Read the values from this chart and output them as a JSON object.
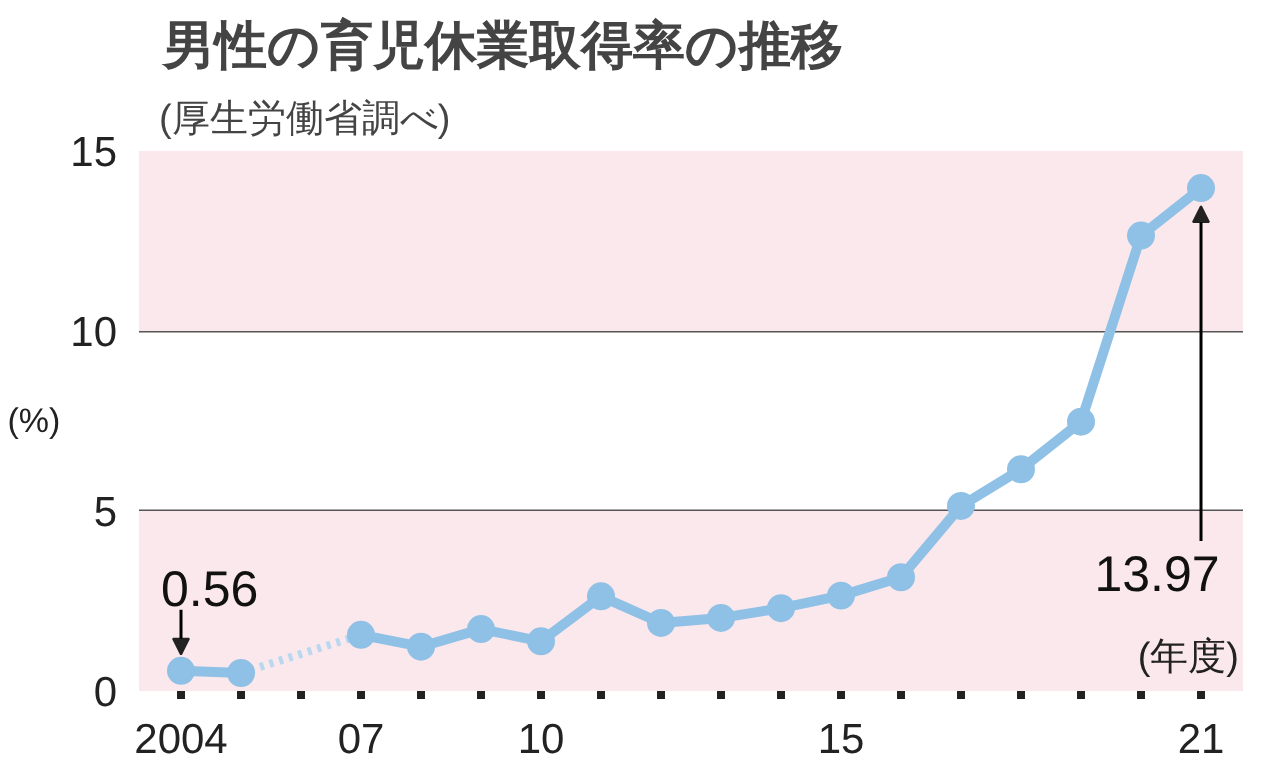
{
  "chart_data": {
    "type": "line",
    "title": "男性の育児休業取得率の推移",
    "subtitle": "(厚生労働省調べ)",
    "ylabel": "(%)",
    "xlabel": "(年度)",
    "x": [
      2004,
      2005,
      2006,
      2007,
      2008,
      2009,
      2010,
      2011,
      2012,
      2013,
      2014,
      2015,
      2016,
      2017,
      2018,
      2019,
      2020,
      2021
    ],
    "series": [
      {
        "color": "#8fc0e6",
        "values": [
          0.56,
          0.5,
          null,
          1.56,
          1.23,
          1.72,
          1.38,
          2.63,
          1.89,
          2.03,
          2.3,
          2.65,
          3.16,
          5.14,
          6.16,
          7.48,
          12.65,
          13.97
        ]
      },
      {
        "color": "#b8d8f0",
        "x": [
          2005,
          2007
        ],
        "values": [
          0.5,
          1.56
        ],
        "line_style": "dotted",
        "marker": "none"
      }
    ],
    "marker": "circle",
    "line_style": "solid",
    "grid": "y",
    "xlim": [
      2003.3,
      2021.7
    ],
    "ylim": [
      0,
      15
    ],
    "xticks": [
      {
        "value": 2004,
        "label": "2004"
      },
      {
        "value": 2005,
        "label": null
      },
      {
        "value": 2006,
        "label": null
      },
      {
        "value": 2007,
        "label": "07"
      },
      {
        "value": 2008,
        "label": null
      },
      {
        "value": 2009,
        "label": null
      },
      {
        "value": 2010,
        "label": "10"
      },
      {
        "value": 2011,
        "label": null
      },
      {
        "value": 2012,
        "label": null
      },
      {
        "value": 2013,
        "label": null
      },
      {
        "value": 2014,
        "label": null
      },
      {
        "value": 2015,
        "label": "15"
      },
      {
        "value": 2016,
        "label": null
      },
      {
        "value": 2017,
        "label": null
      },
      {
        "value": 2018,
        "label": null
      },
      {
        "value": 2019,
        "label": null
      },
      {
        "value": 2020,
        "label": null
      },
      {
        "value": 2021,
        "label": "21"
      }
    ],
    "yticks": [
      0,
      5,
      10,
      15
    ],
    "bands": [
      {
        "axis": "y",
        "from": 0,
        "to": 5,
        "color": "#fbe8ec"
      },
      {
        "axis": "y",
        "from": 10,
        "to": 15,
        "color": "#fbe8ec"
      }
    ],
    "annotations": [
      {
        "text": "0.56",
        "x": 2004,
        "y": 0.56
      },
      {
        "text": "13.97",
        "x": 2021,
        "y": 13.97
      }
    ]
  }
}
